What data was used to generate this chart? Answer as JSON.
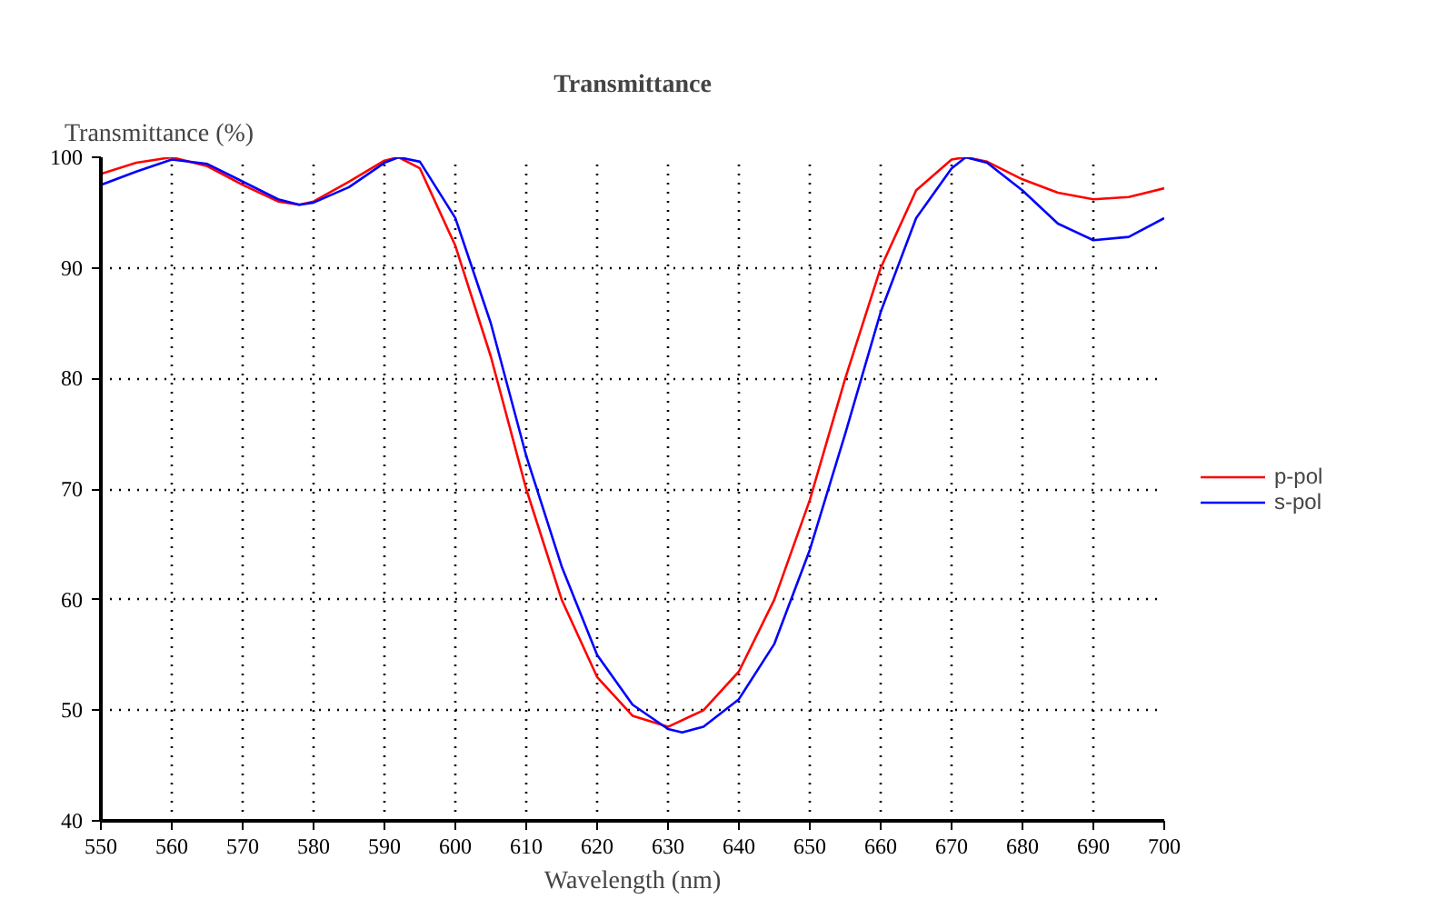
{
  "chart_data": {
    "type": "line",
    "title": "Transmittance",
    "xlabel": "Wavelength (nm)",
    "ylabel": "Transmittance (%)",
    "xlim": [
      550,
      700
    ],
    "ylim": [
      40,
      100
    ],
    "xticks": [
      550,
      560,
      570,
      580,
      590,
      600,
      610,
      620,
      630,
      640,
      650,
      660,
      670,
      680,
      690,
      700
    ],
    "yticks": [
      40,
      50,
      60,
      70,
      80,
      90,
      100
    ],
    "grid": true,
    "legend": "right",
    "line_style": "solid",
    "marker": "none",
    "series": [
      {
        "name": "p-pol",
        "color": "#ff0000",
        "x": [
          550,
          555,
          560,
          565,
          570,
          575,
          578,
          580,
          585,
          590,
          592,
          595,
          600,
          605,
          610,
          615,
          620,
          625,
          630,
          635,
          640,
          645,
          650,
          655,
          660,
          665,
          670,
          672,
          675,
          680,
          685,
          690,
          695,
          700
        ],
        "values": [
          98.5,
          99.5,
          100,
          99.2,
          97.5,
          96,
          95.7,
          96,
          97.8,
          99.7,
          100,
          99,
          92,
          82,
          70,
          60,
          53,
          49.5,
          48.5,
          50,
          53.5,
          60,
          69,
          80,
          90,
          97,
          99.8,
          100,
          99.6,
          98,
          96.8,
          96.2,
          96.4,
          97.2
        ]
      },
      {
        "name": "s-pol",
        "color": "#0000ff",
        "x": [
          550,
          555,
          560,
          565,
          570,
          575,
          578,
          580,
          585,
          590,
          592,
          595,
          600,
          605,
          610,
          615,
          620,
          625,
          630,
          632,
          635,
          640,
          645,
          650,
          655,
          660,
          665,
          670,
          672,
          675,
          680,
          685,
          690,
          695,
          700
        ],
        "values": [
          97.5,
          98.7,
          99.8,
          99.4,
          97.8,
          96.2,
          95.7,
          95.9,
          97.3,
          99.5,
          100,
          99.6,
          94.5,
          85,
          73,
          63,
          55,
          50.5,
          48.3,
          48,
          48.5,
          51,
          56,
          64.5,
          75,
          86,
          94.5,
          99,
          100,
          99.5,
          97,
          94,
          92.5,
          92.8,
          94.5
        ]
      }
    ]
  }
}
